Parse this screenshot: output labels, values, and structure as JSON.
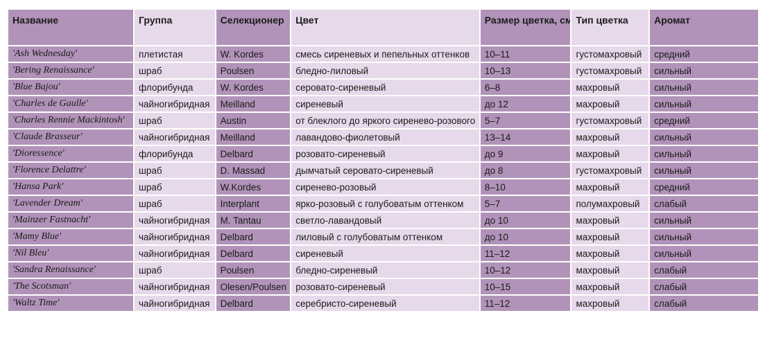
{
  "table": {
    "headers": [
      "Название",
      "Группа",
      "Селекционер",
      "Цвет",
      "Размер цветка, см",
      "Тип цветка",
      "Аромат"
    ],
    "rows": [
      [
        "'Ash Wednesday'",
        "плетистая",
        "W. Kordes",
        "смесь сиреневых и пепельных оттенков",
        "10–11",
        "густомахровый",
        "средний"
      ],
      [
        "'Bering Renaissance'",
        "шраб",
        "Poulsen",
        "бледно-лиловый",
        "10–13",
        "густомахровый",
        "сильный"
      ],
      [
        "'Blue Bajou'",
        "флорибунда",
        "W. Kordes",
        "серовато-сиреневый",
        "6–8",
        "махровый",
        "сильный"
      ],
      [
        "'Charles de Gaulle'",
        "чайногибридная",
        "Meilland",
        "сиреневый",
        "до 12",
        "махровый",
        "сильный"
      ],
      [
        "'Charles Rennie Mackintosh'",
        "шраб",
        "Austin",
        "от блеклого до яркого сиренево-розового",
        "5–7",
        "густомахровый",
        "средний"
      ],
      [
        "'Claude Brasseur'",
        "чайногибридная",
        "Meilland",
        "лавандово-фиолетовый",
        "13–14",
        "махровый",
        "сильный"
      ],
      [
        "'Dioressence'",
        "флорибунда",
        "Delbard",
        "розовато-сиреневый",
        "до 9",
        "махровый",
        "сильный"
      ],
      [
        "'Florence Delattre'",
        "шраб",
        "D. Massad",
        "дымчатый серовато-сиреневый",
        "до 8",
        "густомахровый",
        "сильный"
      ],
      [
        "'Hansa Park'",
        "шраб",
        "W.Kordes",
        "сиренево-розовый",
        "8–10",
        "махровый",
        "средний"
      ],
      [
        "'Lavender Dream'",
        "шраб",
        "Interplant",
        "ярко-розовый с голубоватым оттенком",
        "5–7",
        "полумахровый",
        "слабый"
      ],
      [
        "'Mainzer Fastnacht'",
        "чайногибридная",
        "M. Tantau",
        "светло-лавандовый",
        "до 10",
        "махровый",
        "сильный"
      ],
      [
        "'Mamy Blue'",
        "чайногибридная",
        "Delbard",
        "лиловый с голубоватым оттенком",
        "до 10",
        "махровый",
        "сильный"
      ],
      [
        "'Nil Bleu'",
        "чайногибридная",
        "Delbard",
        "сиреневый",
        "11–12",
        "махровый",
        "сильный"
      ],
      [
        "'Sandra Renaissance'",
        "шраб",
        "Poulsen",
        "бледно-сиреневый",
        "10–12",
        "махровый",
        "слабый"
      ],
      [
        "'The Scotsman'",
        "чайногибридная",
        "Olesen/Poulsen",
        "розовато-сиреневый",
        "10–15",
        "махровый",
        "слабый"
      ],
      [
        "'Waltz Time'",
        "чайногибридная",
        "Delbard",
        "серебристо-сиреневый",
        "11–12",
        "махровый",
        "слабый"
      ]
    ]
  },
  "colors": {
    "dark_column": "#b193b9",
    "light_column": "#e6d9ea"
  }
}
